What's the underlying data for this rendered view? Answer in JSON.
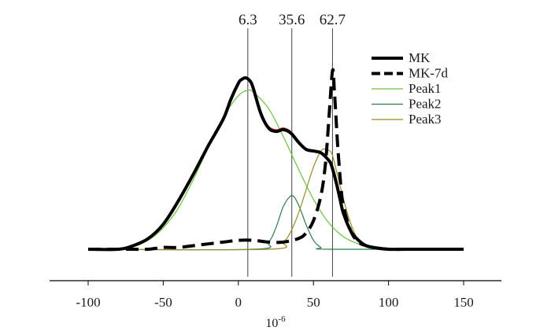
{
  "chart_data": {
    "type": "line",
    "xlabel": "10",
    "xlabel_exponent": "-6",
    "xlim": [
      -100,
      150
    ],
    "xticks": [
      "-100",
      "-50",
      "0",
      "50",
      "100",
      "150"
    ],
    "yaxis_visible": false,
    "grid": false,
    "legend_position": "top-right",
    "peak_markers": [
      {
        "label": "6.3",
        "x": 6.3
      },
      {
        "label": "35.6",
        "x": 35.6
      },
      {
        "label": "62.7",
        "x": 62.7
      }
    ],
    "series": [
      {
        "name": "MK",
        "color": "#000000",
        "style": "solid-thick",
        "x": [
          -100,
          -80,
          -70,
          -60,
          -50,
          -40,
          -30,
          -20,
          -10,
          -5,
          0,
          2,
          5,
          8,
          10,
          15,
          20,
          25,
          30,
          35,
          40,
          45,
          50,
          55,
          60,
          62,
          65,
          68,
          70,
          75,
          80,
          85,
          90,
          100,
          110,
          120,
          130,
          140,
          150
        ],
        "y": [
          0.0,
          0.0,
          0.02,
          0.06,
          0.14,
          0.27,
          0.42,
          0.58,
          0.73,
          0.84,
          0.93,
          0.95,
          0.96,
          0.94,
          0.9,
          0.76,
          0.68,
          0.66,
          0.67,
          0.65,
          0.6,
          0.56,
          0.55,
          0.54,
          0.5,
          0.47,
          0.38,
          0.27,
          0.2,
          0.1,
          0.05,
          0.02,
          0.01,
          0.0,
          0.0,
          0.0,
          0.0,
          0.0,
          0.0
        ]
      },
      {
        "name": "MK-7d",
        "color": "#000000",
        "style": "dashed-thick",
        "x": [
          -100,
          -80,
          -70,
          -60,
          -50,
          -40,
          -30,
          -20,
          -10,
          0,
          10,
          20,
          30,
          40,
          45,
          50,
          55,
          58,
          60,
          62.7,
          64,
          66,
          68,
          70,
          75,
          80,
          85,
          90,
          100,
          120,
          150
        ],
        "y": [
          0.0,
          0.0,
          0.0,
          0.0,
          0.01,
          0.01,
          0.02,
          0.03,
          0.04,
          0.05,
          0.05,
          0.04,
          0.04,
          0.06,
          0.09,
          0.16,
          0.3,
          0.48,
          0.7,
          1.0,
          0.88,
          0.6,
          0.38,
          0.24,
          0.1,
          0.04,
          0.02,
          0.01,
          0.0,
          0.0,
          0.0
        ]
      },
      {
        "name": "",
        "color": "#d04040",
        "style": "thin",
        "x": [
          15,
          20,
          25,
          30,
          35,
          40,
          45,
          50,
          55,
          60,
          62,
          65,
          70,
          75
        ],
        "y": [
          0.76,
          0.69,
          0.67,
          0.68,
          0.66,
          0.61,
          0.56,
          0.55,
          0.54,
          0.49,
          0.46,
          0.37,
          0.2,
          0.1
        ]
      },
      {
        "name": "Peak1",
        "color": "#6cc13f",
        "style": "thin",
        "x": [
          -100,
          -80,
          -70,
          -60,
          -50,
          -40,
          -30,
          -20,
          -10,
          0,
          6.3,
          10,
          20,
          30,
          40,
          50,
          60,
          70,
          80,
          90,
          100,
          150
        ],
        "y": [
          0.0,
          0.0,
          0.02,
          0.05,
          0.12,
          0.23,
          0.39,
          0.57,
          0.74,
          0.86,
          0.89,
          0.88,
          0.79,
          0.63,
          0.45,
          0.28,
          0.15,
          0.07,
          0.03,
          0.01,
          0.0,
          0.0
        ]
      },
      {
        "name": "Peak2",
        "color": "#2e7d4a",
        "style": "thin",
        "x": [
          -100,
          10,
          20,
          25,
          30,
          35.6,
          40,
          45,
          50,
          55,
          60,
          150
        ],
        "y": [
          0.0,
          0.0,
          0.04,
          0.12,
          0.24,
          0.3,
          0.25,
          0.14,
          0.05,
          0.01,
          0.0,
          0.0
        ]
      },
      {
        "name": "Peak3",
        "color": "#9a8a2c",
        "style": "thin",
        "x": [
          -100,
          20,
          30,
          35,
          40,
          45,
          50,
          55,
          58,
          62,
          65,
          70,
          75,
          80,
          85,
          90,
          100,
          150
        ],
        "y": [
          0.0,
          0.0,
          0.04,
          0.1,
          0.2,
          0.33,
          0.46,
          0.55,
          0.56,
          0.54,
          0.45,
          0.28,
          0.14,
          0.05,
          0.02,
          0.01,
          0.0,
          0.0
        ]
      }
    ]
  }
}
